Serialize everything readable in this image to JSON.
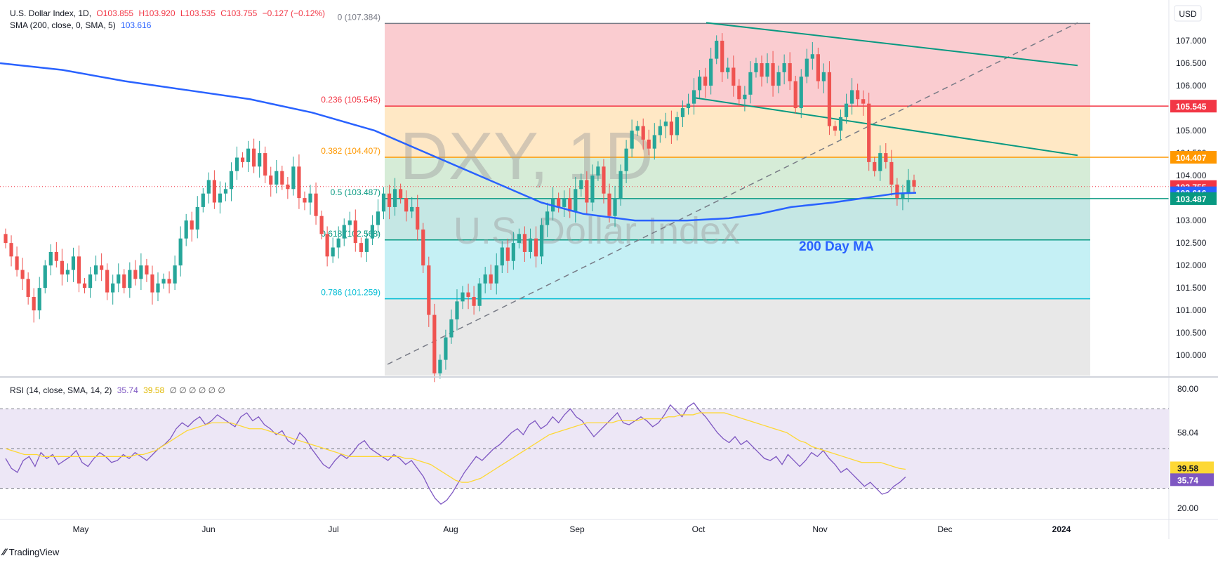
{
  "header": {
    "symbol": "U.S. Dollar Index, 1D,",
    "ohlc": {
      "o": "O103.855",
      "h": "H103.920",
      "l": "L103.535",
      "c": "C103.755",
      "chg": "−0.127 (−0.12%)"
    },
    "sma_label": "SMA (200, close, 0, SMA, 5)",
    "sma_value": "103.616",
    "rsi_label": "RSI (14, close, SMA, 14, 2)",
    "rsi_value": "35.74",
    "rsi_ma_value": "39.58",
    "rsi_zeros": "∅ ∅ ∅ ∅ ∅ ∅"
  },
  "watermark": {
    "ticker": "DXY, 1D",
    "name": "U.S. Dollar Index"
  },
  "currency": "USD",
  "annotation": "200 Day MA",
  "footer": {
    "brand": "TradingView"
  },
  "colors": {
    "up": "#26a69a",
    "down": "#ef5350",
    "sma": "#2962ff",
    "rsi": "#7e57c2",
    "rsi_ma": "#fdd835",
    "fib_1": "#f23645",
    "fib_2": "#ff9800",
    "fib_3": "#089981",
    "fib_4": "#00bcd4",
    "channel": "#089981"
  },
  "chart_data": {
    "type": "candlestick",
    "price_axis": {
      "min": 100.0,
      "max": 107.5,
      "ticks": [
        "107.000",
        "106.500",
        "106.000",
        "105.500",
        "105.000",
        "104.500",
        "104.000",
        "103.500",
        "103.000",
        "102.500",
        "102.000",
        "101.500",
        "101.000",
        "100.500",
        "100.000"
      ]
    },
    "time_axis": {
      "labels": [
        "May",
        "Jun",
        "Jul",
        "Aug",
        "Sep",
        "Oct",
        "Nov",
        "Dec",
        "2024"
      ]
    },
    "price_badges": [
      {
        "value": "105.545",
        "color": "#f23645"
      },
      {
        "value": "104.407",
        "color": "#ff9800"
      },
      {
        "value": "103.755",
        "color": "#f23645"
      },
      {
        "value": "103.616",
        "color": "#2962ff"
      },
      {
        "value": "103.487",
        "color": "#089981"
      }
    ],
    "fib_levels": [
      {
        "ratio": "0",
        "price": 107.384,
        "label": "0 (107.384)",
        "color": "#787b86"
      },
      {
        "ratio": "0.236",
        "price": 105.545,
        "label": "0.236 (105.545)",
        "color": "#f23645"
      },
      {
        "ratio": "0.382",
        "price": 104.407,
        "label": "0.382 (104.407)",
        "color": "#ff9800"
      },
      {
        "ratio": "0.5",
        "price": 103.487,
        "label": "0.5 (103.487)",
        "color": "#089981"
      },
      {
        "ratio": "0.618",
        "price": 102.568,
        "label": "0.618 (102.568)",
        "color": "#089981"
      },
      {
        "ratio": "0.786",
        "price": 101.259,
        "label": "0.786 (101.259)",
        "color": "#00bcd4"
      }
    ],
    "close": [
      102.5,
      102.2,
      101.9,
      101.7,
      101.3,
      101.0,
      101.5,
      102.0,
      102.3,
      102.1,
      101.8,
      101.9,
      102.2,
      101.6,
      101.5,
      101.8,
      102.0,
      101.9,
      101.4,
      101.6,
      101.8,
      101.5,
      101.9,
      101.7,
      102.0,
      101.8,
      101.4,
      101.6,
      101.7,
      101.6,
      102.0,
      102.6,
      103.0,
      102.8,
      103.3,
      103.6,
      103.9,
      103.4,
      103.6,
      103.7,
      104.1,
      104.4,
      104.3,
      104.6,
      104.2,
      104.5,
      104.0,
      103.8,
      104.1,
      103.8,
      103.7,
      104.2,
      103.5,
      103.4,
      103.6,
      103.1,
      102.7,
      102.2,
      102.4,
      102.6,
      102.9,
      103.0,
      102.5,
      102.3,
      102.6,
      102.9,
      103.2,
      103.6,
      103.3,
      103.7,
      103.5,
      103.2,
      103.3,
      102.8,
      102.0,
      100.9,
      99.6,
      99.9,
      100.4,
      100.8,
      101.2,
      101.4,
      101.3,
      101.1,
      101.6,
      101.8,
      101.6,
      102.0,
      102.4,
      102.1,
      102.5,
      102.7,
      102.3,
      102.6,
      102.2,
      102.9,
      103.2,
      103.5,
      103.3,
      103.5,
      103.2,
      103.7,
      103.9,
      103.4,
      104.0,
      104.2,
      103.6,
      103.1,
      103.5,
      104.1,
      104.6,
      105.0,
      105.1,
      104.8,
      104.6,
      104.9,
      105.1,
      105.2,
      104.9,
      105.3,
      105.5,
      105.6,
      105.9,
      106.2,
      106.0,
      106.6,
      107.0,
      106.3,
      106.4,
      106.0,
      105.7,
      105.8,
      106.3,
      106.5,
      106.2,
      106.5,
      106.0,
      106.3,
      106.5,
      106.1,
      105.5,
      106.2,
      106.6,
      106.7,
      106.1,
      106.3,
      105.1,
      105.0,
      105.3,
      105.6,
      105.9,
      105.7,
      105.6,
      104.3,
      104.1,
      104.5,
      104.3,
      103.8,
      103.5,
      103.6,
      103.9,
      103.755
    ],
    "sma_200": {
      "start": 106.5,
      "points": [
        [
          0,
          106.5
        ],
        [
          12,
          106.35
        ],
        [
          24,
          106.1
        ],
        [
          36,
          105.9
        ],
        [
          48,
          105.7
        ],
        [
          60,
          105.4
        ],
        [
          72,
          105.0
        ],
        [
          84,
          104.4
        ],
        [
          96,
          103.8
        ],
        [
          104,
          103.4
        ],
        [
          112,
          103.15
        ],
        [
          122,
          103.0
        ],
        [
          132,
          103.0
        ],
        [
          140,
          103.05
        ],
        [
          146,
          103.15
        ],
        [
          152,
          103.3
        ],
        [
          160,
          103.4
        ],
        [
          166,
          103.5
        ],
        [
          172,
          103.6
        ],
        [
          176,
          103.616
        ]
      ]
    },
    "channel": {
      "upper": [
        [
          0,
          107.4
        ],
        [
          48,
          106.45
        ]
      ],
      "lower": [
        [
          0,
          105.73
        ],
        [
          48,
          104.45
        ]
      ]
    },
    "trendline": {
      "from": [
        0,
        99.8
      ],
      "to": [
        128,
        107.4
      ]
    },
    "rsi_axis": {
      "ticks": [
        "80.00",
        "58.04",
        "39.69",
        "39.58",
        "35.74",
        "20.00"
      ],
      "levels": [
        70,
        50,
        30
      ]
    },
    "rsi": [
      45,
      40,
      38,
      44,
      46,
      41,
      48,
      45,
      47,
      42,
      44,
      46,
      49,
      43,
      41,
      45,
      48,
      46,
      43,
      44,
      47,
      45,
      48,
      46,
      44,
      47,
      50,
      52,
      55,
      60,
      63,
      61,
      64,
      66,
      62,
      64,
      67,
      65,
      63,
      61,
      66,
      68,
      64,
      66,
      62,
      60,
      57,
      59,
      54,
      52,
      58,
      55,
      50,
      46,
      42,
      40,
      44,
      47,
      45,
      48,
      52,
      54,
      50,
      48,
      46,
      44,
      47,
      45,
      42,
      44,
      40,
      36,
      30,
      25,
      22,
      24,
      28,
      33,
      38,
      42,
      46,
      44,
      47,
      50,
      52,
      55,
      58,
      60,
      57,
      62,
      64,
      60,
      62,
      66,
      63,
      67,
      70,
      66,
      64,
      60,
      56,
      59,
      62,
      65,
      68,
      63,
      62,
      64,
      66,
      64,
      61,
      63,
      67,
      72,
      69,
      66,
      71,
      73,
      69,
      66,
      62,
      58,
      55,
      53,
      56,
      52,
      54,
      51,
      48,
      45,
      44,
      46,
      42,
      47,
      44,
      41,
      44,
      48,
      46,
      49,
      45,
      42,
      38,
      40,
      37,
      34,
      31,
      33,
      30,
      27,
      28,
      31,
      33,
      35.74
    ],
    "rsi_ma": [
      50,
      49,
      48,
      47,
      47,
      47,
      46,
      46,
      46,
      46,
      46,
      46,
      46,
      46,
      46,
      46,
      46,
      46,
      46,
      46,
      46,
      47,
      47,
      48,
      49,
      51,
      53,
      55,
      57,
      59,
      60,
      61,
      62,
      63,
      63,
      63,
      63,
      62,
      61,
      60,
      60,
      60,
      59,
      58,
      57,
      56,
      55,
      54,
      53,
      52,
      51,
      50,
      49,
      48,
      47,
      46,
      46,
      46,
      46,
      46,
      46,
      46,
      46,
      46,
      45,
      45,
      44,
      43,
      42,
      40,
      38,
      36,
      34,
      33,
      33,
      34,
      35,
      37,
      39,
      41,
      43,
      45,
      47,
      49,
      51,
      53,
      55,
      57,
      58,
      59,
      60,
      61,
      62,
      63,
      63,
      63,
      63,
      63,
      64,
      64,
      64,
      64,
      65,
      65,
      65,
      65,
      66,
      66,
      67,
      67,
      67,
      68,
      68,
      68,
      68,
      68,
      67,
      66,
      65,
      64,
      63,
      62,
      61,
      60,
      59,
      58,
      56,
      54,
      53,
      51,
      50,
      49,
      48,
      47,
      46,
      45,
      44,
      43,
      43,
      43,
      43,
      42,
      41,
      40,
      39.58
    ]
  }
}
